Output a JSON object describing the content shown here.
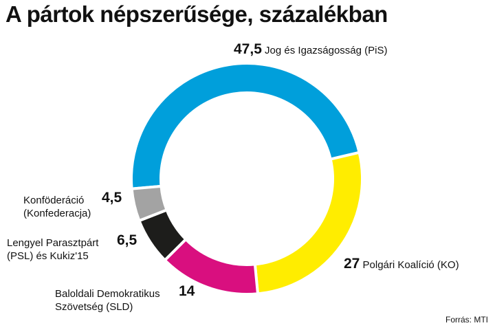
{
  "chart_data": {
    "type": "pie",
    "title": "A pártok népszerűsége, százalékban",
    "series": [
      {
        "value": 47.5,
        "display": "47,5",
        "label_lines": [
          "Jog és Igazságosság (PiS)"
        ],
        "color": "#009fdb"
      },
      {
        "value": 27,
        "display": "27",
        "label_lines": [
          "Polgári Koalíció (KO)"
        ],
        "color": "#ffed00"
      },
      {
        "value": 14,
        "display": "14",
        "label_lines": [
          "Baloldali Demokratikus",
          "Szövetség (SLD)"
        ],
        "color": "#d90f7f"
      },
      {
        "value": 6.5,
        "display": "6,5",
        "label_lines": [
          "Lengyel Parasztpárt",
          "(PSL) és Kukiz'15"
        ],
        "color": "#1d1d1b"
      },
      {
        "value": 4.5,
        "display": "4,5",
        "label_lines": [
          "Konföderáció",
          "(Konfederacja)"
        ],
        "color": "#a3a3a3"
      }
    ],
    "source": "Forrás: MTI"
  }
}
